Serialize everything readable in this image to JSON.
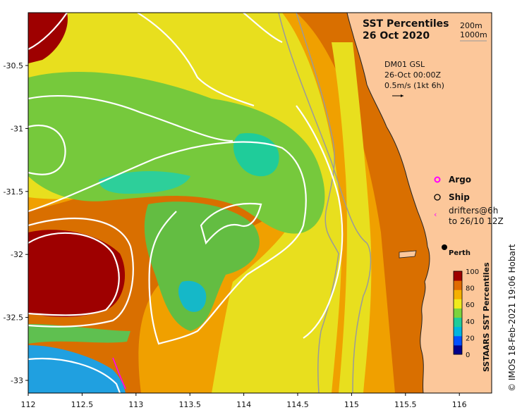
{
  "map": {
    "title_line1": "SST Percentiles",
    "title_line2": "26 Oct 2020",
    "isobaths": [
      "200m",
      "1000m"
    ],
    "model_lines": [
      "DM01 GSL",
      "26-Oct 00:00Z",
      "0.5m/s (1kt 6h)"
    ],
    "legend": {
      "argo": "Argo",
      "ship": "Ship",
      "drifters_line1": "drifters@6h",
      "drifters_line2": "to 26/10 12Z"
    },
    "place": "Perth",
    "lon_ticks": [
      "112",
      "112.5",
      "113",
      "113.5",
      "114",
      "114.5",
      "115",
      "115.5",
      "116"
    ],
    "lat_ticks": [
      "-30.5",
      "-31",
      "-31.5",
      "-32",
      "-32.5",
      "-33"
    ],
    "colorbar": {
      "label": "SSTAARS SST Percentiles",
      "ticks": [
        "100",
        "80",
        "60",
        "40",
        "20",
        "0"
      ],
      "colors": [
        "#00008b",
        "#0050ff",
        "#00b4e0",
        "#1fcc9a",
        "#7cd33d",
        "#f0ea1c",
        "#f5b000",
        "#e06a00",
        "#9e0000"
      ]
    },
    "credit": "© IMOS 18-Feb-2021 19:06 Hobart",
    "land_color": "#fcc79a"
  }
}
